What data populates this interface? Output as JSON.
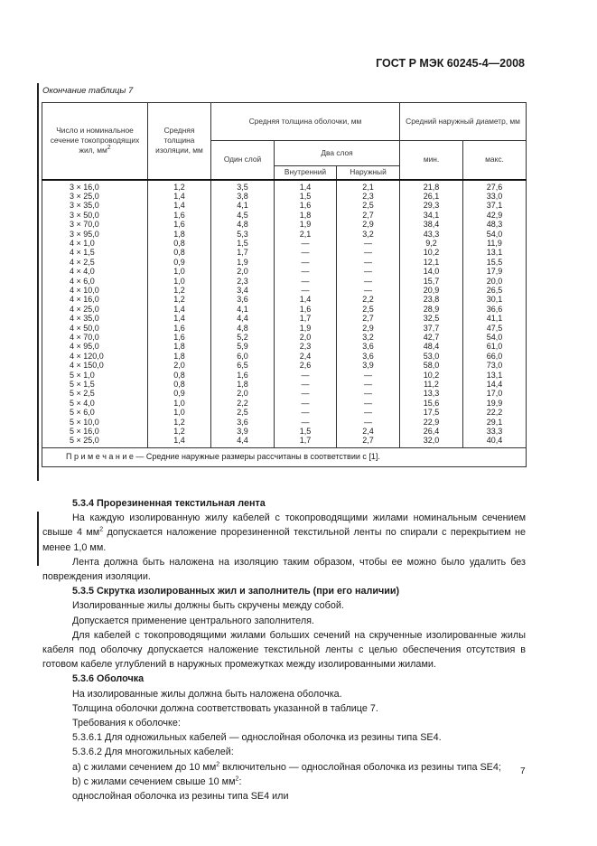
{
  "header": {
    "doc_code": "ГОСТ Р МЭК 60245-4—2008"
  },
  "table": {
    "caption": "Окончание таблицы 7",
    "headers": {
      "conductors": "Число и номинальное сечение токопроводящих жил, мм",
      "conductors_sup": "2",
      "insulation": "Средняя толщина изоляции, мм",
      "sheath": "Средняя толщина оболочки, мм",
      "single_layer": "Один слой",
      "two_layers": "Два слоя",
      "inner": "Внутренний",
      "outer": "Наружный",
      "diameter": "Средний наружный диаметр, мм",
      "min": "мин.",
      "max": "макс."
    },
    "rows": [
      [
        "3 × 16,0",
        "1,2",
        "3,5",
        "1,4",
        "2,1",
        "21,8",
        "27,6"
      ],
      [
        "3 × 25,0",
        "1,4",
        "3,8",
        "1,5",
        "2,3",
        "26,1",
        "33,0"
      ],
      [
        "3 × 35,0",
        "1,4",
        "4,1",
        "1,6",
        "2,5",
        "29,3",
        "37,1"
      ],
      [
        "3 × 50,0",
        "1,6",
        "4,5",
        "1,8",
        "2,7",
        "34,1",
        "42,9"
      ],
      [
        "3 × 70,0",
        "1,6",
        "4,8",
        "1,9",
        "2,9",
        "38,4",
        "48,3"
      ],
      [
        "3 × 95,0",
        "1,8",
        "5,3",
        "2,1",
        "3,2",
        "43,3",
        "54,0"
      ],
      [
        "4 × 1,0",
        "0,8",
        "1,5",
        "—",
        "—",
        "9,2",
        "11,9"
      ],
      [
        "4 × 1,5",
        "0,8",
        "1,7",
        "—",
        "—",
        "10,2",
        "13,1"
      ],
      [
        "4 × 2,5",
        "0,9",
        "1,9",
        "—",
        "—",
        "12,1",
        "15,5"
      ],
      [
        "4 × 4,0",
        "1,0",
        "2,0",
        "—",
        "—",
        "14,0",
        "17,9"
      ],
      [
        "4 × 6,0",
        "1,0",
        "2,3",
        "—",
        "—",
        "15,7",
        "20,0"
      ],
      [
        "4 × 10,0",
        "1,2",
        "3,4",
        "—",
        "—",
        "20,9",
        "26,5"
      ],
      [
        "4 × 16,0",
        "1,2",
        "3,6",
        "1,4",
        "2,2",
        "23,8",
        "30,1"
      ],
      [
        "4 × 25,0",
        "1,4",
        "4,1",
        "1,6",
        "2,5",
        "28,9",
        "36,6"
      ],
      [
        "4 × 35,0",
        "1,4",
        "4,4",
        "1,7",
        "2,7",
        "32,5",
        "41,1"
      ],
      [
        "4 × 50,0",
        "1,6",
        "4,8",
        "1,9",
        "2,9",
        "37,7",
        "47,5"
      ],
      [
        "4 × 70,0",
        "1,6",
        "5,2",
        "2,0",
        "3,2",
        "42,7",
        "54,0"
      ],
      [
        "4 × 95,0",
        "1,8",
        "5,9",
        "2,3",
        "3,6",
        "48,4",
        "61,0"
      ],
      [
        "4 × 120,0",
        "1,8",
        "6,0",
        "2,4",
        "3,6",
        "53,0",
        "66,0"
      ],
      [
        "4 × 150,0",
        "2,0",
        "6,5",
        "2,6",
        "3,9",
        "58,0",
        "73,0"
      ],
      [
        "5 × 1,0",
        "0,8",
        "1,6",
        "—",
        "—",
        "10,2",
        "13,1"
      ],
      [
        "5 × 1,5",
        "0,8",
        "1,8",
        "—",
        "—",
        "11,2",
        "14,4"
      ],
      [
        "5 × 2,5",
        "0,9",
        "2,0",
        "—",
        "—",
        "13,3",
        "17,0"
      ],
      [
        "5 × 4,0",
        "1,0",
        "2,2",
        "—",
        "—",
        "15,6",
        "19,9"
      ],
      [
        "5 × 6,0",
        "1,0",
        "2,5",
        "—",
        "—",
        "17,5",
        "22,2"
      ],
      [
        "5 × 10,0",
        "1,2",
        "3,6",
        "—",
        "—",
        "22,9",
        "29,1"
      ],
      [
        "5 × 16,0",
        "1,2",
        "3,9",
        "1,5",
        "2,4",
        "26,4",
        "33,3"
      ],
      [
        "5 × 25,0",
        "1,4",
        "4,4",
        "1,7",
        "2,7",
        "32,0",
        "40,4"
      ]
    ],
    "note": "П р и м е ч а н и е — Средние наружные размеры рассчитаны в соответствии с [1]."
  },
  "body": {
    "s534_title": "5.3.4 Прорезиненная текстильная лента",
    "s534_p1a": "На каждую изолированную жилу кабелей с токопроводящими жилами номинальным сечением свыше 4 мм",
    "s534_p1b": " допускается наложение прорезиненной текстильной ленты по спирали с перекрытием не менее 1,0 мм.",
    "s534_p2": "Лента должна быть наложена на изоляцию таким образом, чтобы ее можно было удалить без повреждения изоляции.",
    "s535_title": "5.3.5 Скрутка изолированных жил и заполнитель (при его наличии)",
    "s535_p1": "Изолированные жилы должны быть скручены между собой.",
    "s535_p2": "Допускается применение центрального заполнителя.",
    "s535_p3": "Для кабелей с токопроводящими жилами больших сечений на скрученные изолированные жилы кабеля под оболочку допускается наложение текстильной ленты с целью обеспечения отсутствия в готовом кабеле углублений в наружных промежутках между изолированными жилами.",
    "s536_title": "5.3.6 Оболочка",
    "s536_p1": "На изолированные жилы должна быть наложена оболочка.",
    "s536_p2": "Толщина оболочки должна соответствовать указанной в таблице 7.",
    "s536_p3": "Требования к оболочке:",
    "s5361": "5.3.6.1 Для одножильных кабелей — однослойная оболочка из резины типа SE4.",
    "s5362": "5.3.6.2 Для многожильных кабелей:",
    "item_a1": "a) с жилами сечением до 10 мм",
    "item_a2": " включительно — однослойная оболочка из резины типа SE4;",
    "item_b1": "b) с жилами сечением свыше 10 мм",
    "item_b2": ":",
    "last": "однослойная оболочка из резины типа SE4 или",
    "sup2": "2"
  },
  "page_number": "7"
}
